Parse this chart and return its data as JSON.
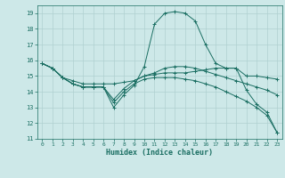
{
  "xlabel": "Humidex (Indice chaleur)",
  "xlim": [
    -0.5,
    23.5
  ],
  "ylim": [
    11,
    19.5
  ],
  "yticks": [
    11,
    12,
    13,
    14,
    15,
    16,
    17,
    18,
    19
  ],
  "xticks": [
    0,
    1,
    2,
    3,
    4,
    5,
    6,
    7,
    8,
    9,
    10,
    11,
    12,
    13,
    14,
    15,
    16,
    17,
    18,
    19,
    20,
    21,
    22,
    23
  ],
  "bg_color": "#cde8e8",
  "line_color": "#1a6e62",
  "grid_color": "#afd0d0",
  "lines": [
    {
      "x": [
        0,
        1,
        2,
        3,
        4,
        5,
        6,
        7,
        8,
        9,
        10,
        11,
        12,
        13,
        14,
        15,
        16,
        17,
        18,
        19,
        20,
        21,
        22,
        23
      ],
      "y": [
        15.8,
        15.5,
        14.9,
        14.5,
        14.3,
        14.3,
        14.3,
        13.0,
        13.8,
        14.4,
        15.6,
        18.3,
        19.0,
        19.1,
        19.0,
        18.5,
        17.0,
        15.8,
        15.5,
        15.5,
        14.1,
        13.2,
        12.7,
        11.4
      ]
    },
    {
      "x": [
        0,
        1,
        2,
        3,
        4,
        5,
        6,
        7,
        8,
        9,
        10,
        11,
        12,
        13,
        14,
        15,
        16,
        17,
        18,
        19,
        20,
        21,
        22,
        23
      ],
      "y": [
        15.8,
        15.5,
        14.9,
        14.7,
        14.5,
        14.5,
        14.5,
        14.5,
        14.6,
        14.7,
        15.0,
        15.1,
        15.2,
        15.2,
        15.2,
        15.3,
        15.4,
        15.5,
        15.5,
        15.5,
        15.0,
        15.0,
        14.9,
        14.8
      ]
    },
    {
      "x": [
        0,
        1,
        2,
        3,
        4,
        5,
        6,
        7,
        8,
        9,
        10,
        11,
        12,
        13,
        14,
        15,
        16,
        17,
        18,
        19,
        20,
        21,
        22,
        23
      ],
      "y": [
        15.8,
        15.5,
        14.9,
        14.5,
        14.3,
        14.3,
        14.3,
        13.5,
        14.2,
        14.7,
        15.0,
        15.2,
        15.5,
        15.6,
        15.6,
        15.5,
        15.3,
        15.1,
        14.9,
        14.7,
        14.5,
        14.3,
        14.1,
        13.8
      ]
    },
    {
      "x": [
        0,
        1,
        2,
        3,
        4,
        5,
        6,
        7,
        8,
        9,
        10,
        11,
        12,
        13,
        14,
        15,
        16,
        17,
        18,
        19,
        20,
        21,
        22,
        23
      ],
      "y": [
        15.8,
        15.5,
        14.9,
        14.5,
        14.3,
        14.3,
        14.3,
        13.3,
        14.0,
        14.5,
        14.8,
        14.9,
        14.9,
        14.9,
        14.8,
        14.7,
        14.5,
        14.3,
        14.0,
        13.7,
        13.4,
        13.0,
        12.5,
        11.4
      ]
    }
  ]
}
